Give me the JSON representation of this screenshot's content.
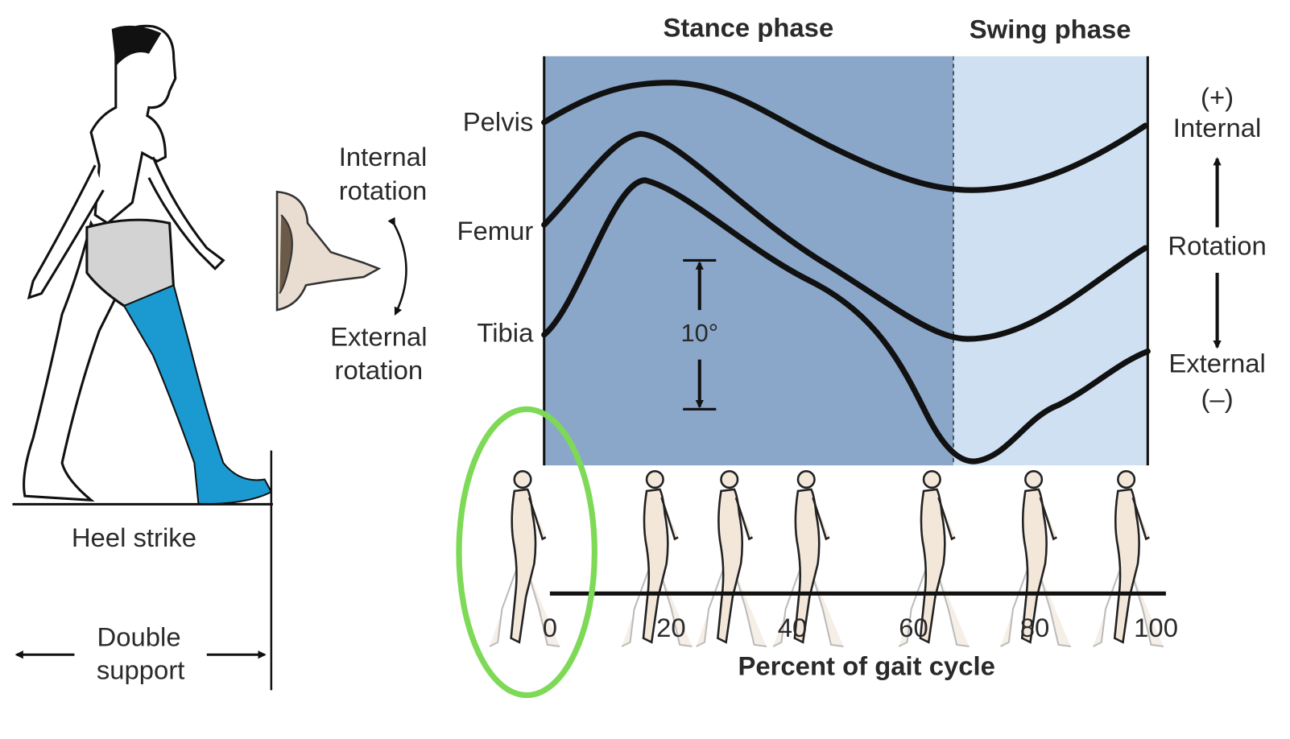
{
  "left": {
    "caption": "Heel strike",
    "double_support": [
      "Double",
      "support"
    ]
  },
  "rotation_legend": {
    "internal": [
      "Internal",
      "rotation"
    ],
    "external": [
      "External",
      "rotation"
    ]
  },
  "phases": {
    "stance": "Stance phase",
    "swing": "Swing phase"
  },
  "curves": {
    "pelvis": "Pelvis",
    "femur": "Femur",
    "tibia": "Tibia"
  },
  "scale_label": "10°",
  "right_axis": {
    "plus": "(+)",
    "internal": "Internal",
    "middle": "Rotation",
    "external": "External",
    "minus": "(–)"
  },
  "x_axis": {
    "ticks": [
      "0",
      "20",
      "40",
      "60",
      "80",
      "100"
    ],
    "title": "Percent of gait cycle"
  }
}
